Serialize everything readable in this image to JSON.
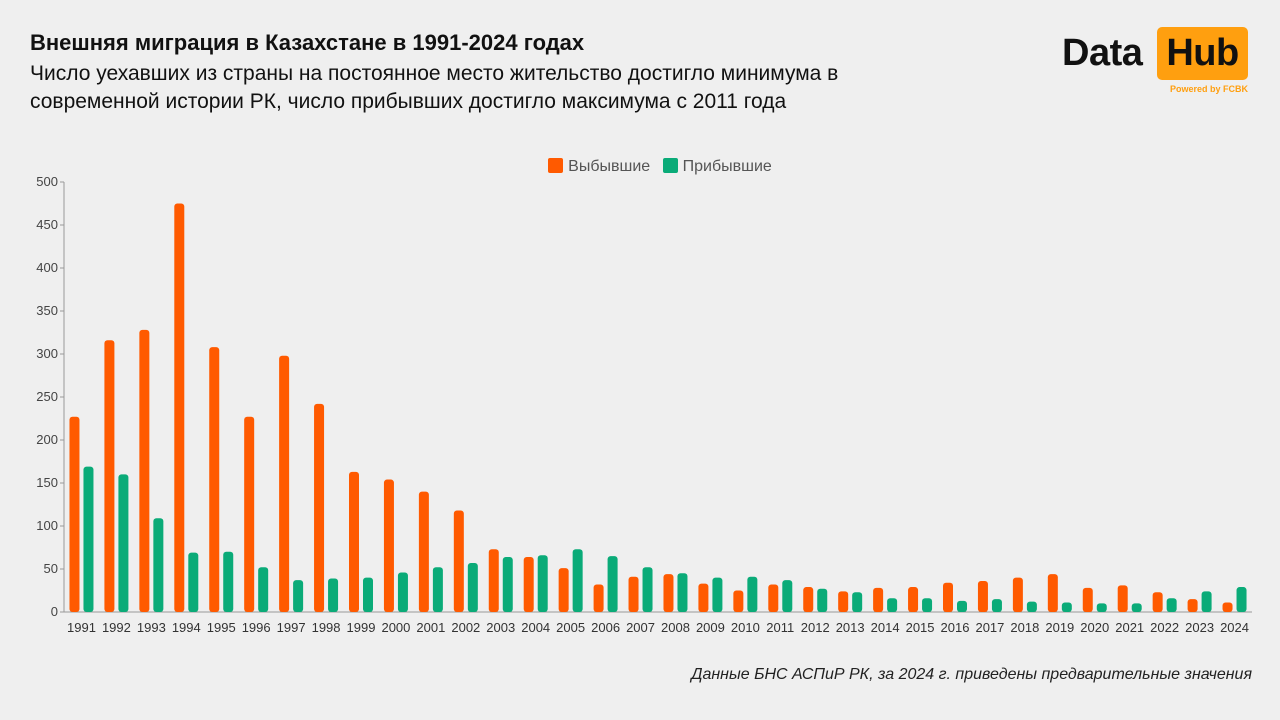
{
  "header": {
    "title": "Внешняя миграция в Казахстане в 1991-2024 годах",
    "subtitle": "Число уехавших из страны на постоянное место жительство достигло минимума в современной истории РК, число прибывших достигло максимума с 2011 года"
  },
  "logo": {
    "word1": "Data",
    "word2": "Hub",
    "tagline": "Powered by FCBK",
    "accent_color": "#ff9f0f"
  },
  "footnote": "Данные БНС АСПиР РК, за 2024 г. приведены предварительные значения",
  "chart_data": {
    "type": "bar",
    "categories": [
      "1991",
      "1992",
      "1993",
      "1994",
      "1995",
      "1996",
      "1997",
      "1998",
      "1999",
      "2000",
      "2001",
      "2002",
      "2003",
      "2004",
      "2005",
      "2006",
      "2007",
      "2008",
      "2009",
      "2010",
      "2011",
      "2012",
      "2013",
      "2014",
      "2015",
      "2016",
      "2017",
      "2018",
      "2019",
      "2020",
      "2021",
      "2022",
      "2023",
      "2024"
    ],
    "series": [
      {
        "name": "Выбывшие",
        "color": "#ff5a00",
        "values": [
          227,
          316,
          328,
          475,
          308,
          227,
          298,
          242,
          163,
          154,
          140,
          118,
          73,
          64,
          51,
          32,
          41,
          44,
          33,
          25,
          32,
          29,
          24,
          28,
          29,
          34,
          36,
          40,
          44,
          28,
          31,
          23,
          15,
          11
        ]
      },
      {
        "name": "Прибывшие",
        "color": "#0aab78",
        "values": [
          169,
          160,
          109,
          69,
          70,
          52,
          37,
          39,
          40,
          46,
          52,
          57,
          64,
          66,
          73,
          65,
          52,
          45,
          40,
          41,
          37,
          27,
          23,
          16,
          16,
          13,
          15,
          12,
          11,
          10,
          10,
          16,
          24,
          29
        ]
      }
    ],
    "yticks": [
      0,
      50,
      100,
      150,
      200,
      250,
      300,
      350,
      400,
      450,
      500
    ],
    "ylim": [
      0,
      500
    ],
    "grid": false,
    "legend_position": "top-center"
  }
}
